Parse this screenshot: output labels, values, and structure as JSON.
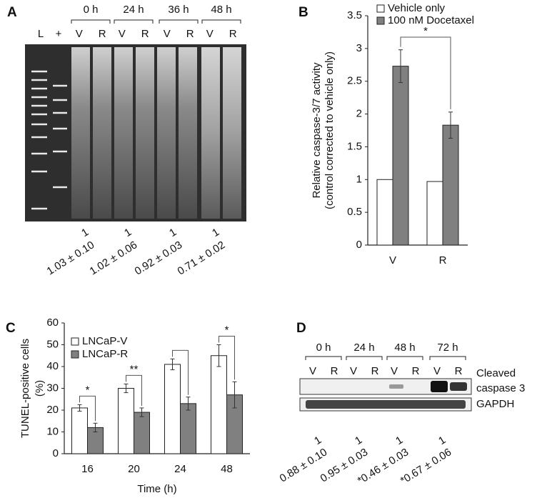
{
  "panel_labels": [
    "A",
    "B",
    "C",
    "D"
  ],
  "gel": {
    "lanes": [
      "L",
      "+"
    ],
    "timepoints": [
      {
        "label": "0 h",
        "lanes": [
          "V",
          "R"
        ]
      },
      {
        "label": "24 h",
        "lanes": [
          "V",
          "R"
        ]
      },
      {
        "label": "36 h",
        "lanes": [
          "V",
          "R"
        ]
      },
      {
        "label": "48 h",
        "lanes": [
          "V",
          "R"
        ]
      }
    ],
    "ratios": [
      {
        "top": "1",
        "bottom": "1.03 ± 0.10"
      },
      {
        "top": "1",
        "bottom": "1.02 ± 0.06"
      },
      {
        "top": "1",
        "bottom": "0.92 ± 0.03"
      },
      {
        "top": "1",
        "bottom": "0.71 ± 0.02"
      }
    ]
  },
  "chart_data": [
    {
      "type": "bar",
      "ylabel": [
        "Relative caspase-3/7 activity",
        "(control corrected to vehicle only)"
      ],
      "categories": [
        "V",
        "R"
      ],
      "series": [
        {
          "name": "Vehicle only",
          "color": "#ffffff",
          "values": [
            1,
            0.97
          ]
        },
        {
          "name": "100 nM Docetaxel",
          "color": "#808080",
          "values": [
            2.73,
            1.83
          ],
          "errors": [
            0.25,
            0.2
          ]
        }
      ],
      "ylim": [
        0,
        3.5
      ],
      "yticks": [
        0,
        0.5,
        1,
        1.5,
        2,
        2.5,
        3,
        3.5
      ],
      "significance": [
        "*"
      ]
    },
    {
      "type": "bar",
      "ylabel": [
        "TUNEL-positive cells",
        "(%)"
      ],
      "xlabel": "Time (h)",
      "categories": [
        "16",
        "20",
        "24",
        "48"
      ],
      "series": [
        {
          "name": "LNCaP-V",
          "color": "#ffffff",
          "values": [
            21,
            30,
            41,
            45
          ],
          "errors": [
            1.5,
            2,
            2.5,
            5
          ]
        },
        {
          "name": "LNCaP-R",
          "color": "#808080",
          "values": [
            12,
            19,
            23,
            27
          ],
          "errors": [
            2,
            2,
            3,
            6
          ]
        }
      ],
      "ylim": [
        0,
        60
      ],
      "yticks": [
        0,
        10,
        20,
        30,
        40,
        50,
        60
      ],
      "significance": [
        "*",
        "**",
        null,
        "*"
      ]
    }
  ],
  "blot": {
    "timepoints": [
      {
        "label": "0 h",
        "lanes": [
          "V",
          "R"
        ]
      },
      {
        "label": "24 h",
        "lanes": [
          "V",
          "R"
        ]
      },
      {
        "label": "48 h",
        "lanes": [
          "V",
          "R"
        ]
      },
      {
        "label": "72 h",
        "lanes": [
          "V",
          "R"
        ]
      }
    ],
    "row_labels": [
      {
        "lines": [
          "Cleaved",
          "caspase 3"
        ]
      },
      {
        "lines": [
          "GAPDH"
        ]
      }
    ],
    "ratios": [
      {
        "top": "1",
        "bottom": "0.88 ± 0.10"
      },
      {
        "top": "1",
        "bottom": "0.95 ± 0.03"
      },
      {
        "top": "1",
        "bottom": "*0.46 ± 0.03"
      },
      {
        "top": "1",
        "bottom": "*0.67 ± 0.06"
      }
    ]
  }
}
